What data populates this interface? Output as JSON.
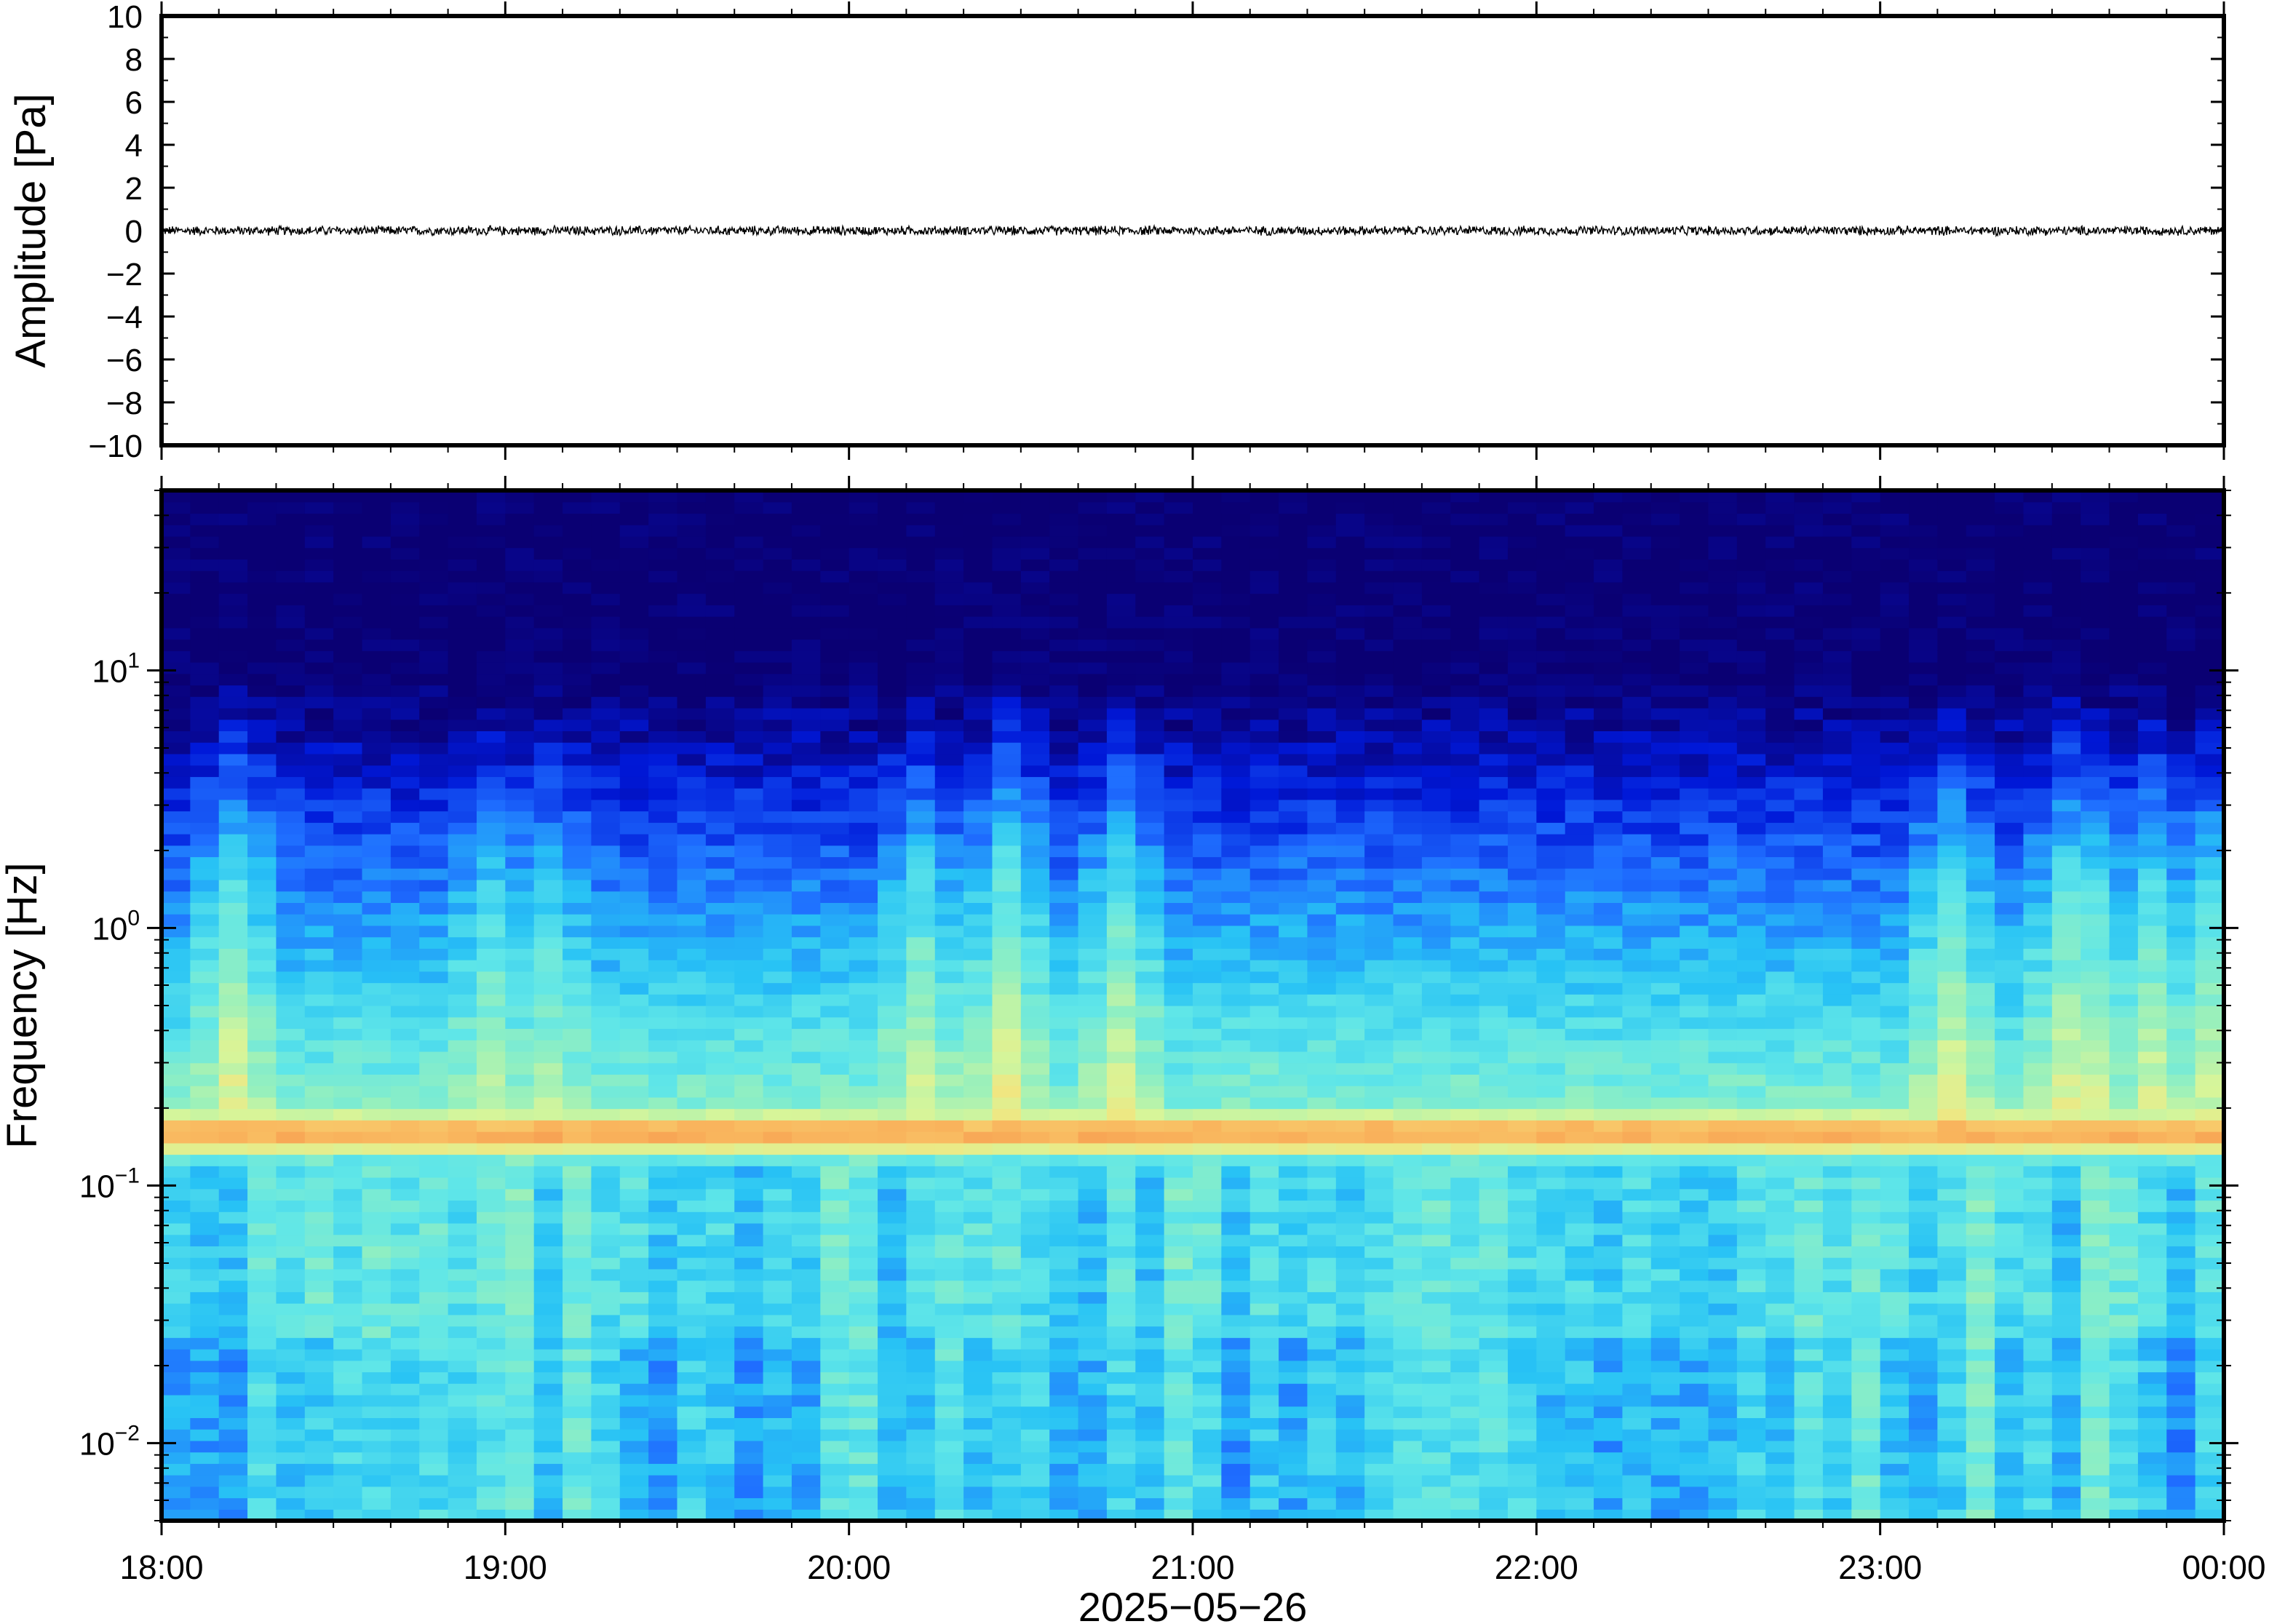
{
  "chart_data": [
    {
      "type": "line",
      "ylabel": "Amplitude [Pa]",
      "ylim": [
        -10,
        10
      ],
      "yticks": [
        10,
        8,
        6,
        4,
        2,
        0,
        -2,
        -4,
        -6,
        -8,
        -10
      ],
      "ytick_labels": [
        "10",
        "8",
        "6",
        "4",
        "2",
        "0",
        "−2",
        "−4",
        "−6",
        "−8",
        "−10"
      ],
      "xlim": [
        "2025-05-26 18:00",
        "2025-05-27 00:00"
      ],
      "series": [
        {
          "x_range": [
            "2025-05-26 18:00",
            "2025-05-27 00:00"
          ],
          "value_mean": 0.0,
          "value_peak_abs": 0.25,
          "color": "#000000"
        }
      ],
      "grid": false
    },
    {
      "type": "heatmap",
      "ylabel": "Frequency [Hz]",
      "yscale": "log",
      "ylim": [
        0.005,
        50
      ],
      "ytick_labels": [
        {
          "base": "10",
          "exp": "1",
          "value": 10
        },
        {
          "base": "10",
          "exp": "0",
          "value": 1
        },
        {
          "base": "10",
          "exp": "−1",
          "value": 0.1
        },
        {
          "base": "10",
          "exp": "−2",
          "value": 0.01
        }
      ],
      "xlabel": "2025−05−26",
      "xtick_labels": [
        "18:00",
        "19:00",
        "20:00",
        "21:00",
        "22:00",
        "23:00",
        "00:00"
      ],
      "xlim": [
        "2025-05-26 18:00",
        "2025-05-27 00:00"
      ],
      "colormap": "jet",
      "colormap_stops": [
        "#0a0073",
        "#0018d8",
        "#1f6eff",
        "#27c2f5",
        "#5fe6e8",
        "#96f0bd",
        "#d6f59a",
        "#f7e27a",
        "#f9b05a",
        "#f06a3a"
      ],
      "time_columns": 72,
      "frequency_rows": 90,
      "spectral_peak_hz": 0.16,
      "spectral_peak_band_hz": [
        0.12,
        0.22
      ],
      "upper_cutoff_hz_typical": 7,
      "bursts": [
        {
          "time": "18:10",
          "up_to_hz": 11,
          "strength": 0.55
        },
        {
          "time": "18:55",
          "up_to_hz": 6,
          "strength": 0.35
        },
        {
          "time": "19:05",
          "up_to_hz": 9,
          "strength": 0.3
        },
        {
          "time": "20:10",
          "up_to_hz": 9,
          "strength": 0.45
        },
        {
          "time": "20:25",
          "up_to_hz": 8,
          "strength": 0.4
        },
        {
          "time": "20:25",
          "up_to_hz": 14,
          "strength": 0.6
        },
        {
          "time": "20:45",
          "up_to_hz": 9,
          "strength": 0.5
        },
        {
          "time": "23:10",
          "up_to_hz": 10,
          "strength": 0.55
        },
        {
          "time": "23:30",
          "up_to_hz": 11,
          "strength": 0.5
        },
        {
          "time": "23:35",
          "up_to_hz": 10,
          "strength": 0.45
        },
        {
          "time": "23:45",
          "up_to_hz": 9,
          "strength": 0.45
        },
        {
          "time": "23:55",
          "up_to_hz": 7,
          "strength": 0.4
        }
      ],
      "grid": false
    }
  ]
}
